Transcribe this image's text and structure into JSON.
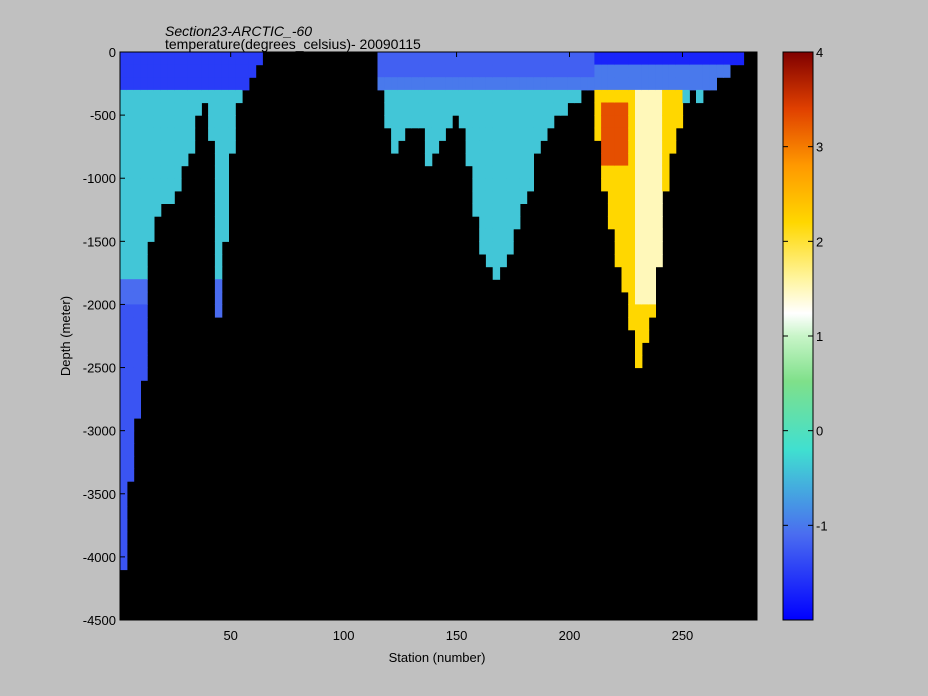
{
  "chart_data": {
    "type": "heatmap",
    "title": "Section23-ARCTIC_-60",
    "subtitle": "temperature(degrees_celsius)- 20090115",
    "xlabel": "Station (number)",
    "ylabel": "Depth (meter)",
    "xlim": [
      1,
      283
    ],
    "ylim": [
      -4500,
      0
    ],
    "x_ticks": [
      50,
      100,
      150,
      200,
      250
    ],
    "y_ticks": [
      0,
      -500,
      -1000,
      -1500,
      -2000,
      -2500,
      -3000,
      -3500,
      -4000,
      -4500
    ],
    "colorbar": {
      "range": [
        -2,
        4
      ],
      "ticks": [
        -1,
        0,
        1,
        2,
        3,
        4
      ],
      "colormap": "jet"
    },
    "missing_color": "#000000",
    "grid": false,
    "bottom_depth_profile": {
      "stations": [
        1,
        3,
        5,
        8,
        12,
        14,
        16,
        20,
        25,
        30,
        32,
        36,
        40,
        42,
        44,
        46,
        48,
        52,
        58,
        62,
        66,
        70,
        100,
        114,
        118,
        122,
        126,
        130,
        134,
        138,
        142,
        146,
        150,
        154,
        158,
        162,
        165,
        170,
        175,
        178,
        182,
        186,
        190,
        195,
        200,
        205,
        210,
        214,
        218,
        222,
        226,
        230,
        234,
        238,
        242,
        246,
        250,
        254,
        258,
        262,
        266,
        270,
        274,
        278,
        283
      ],
      "depths": [
        -4500,
        -4000,
        -3500,
        -3000,
        -2500,
        -1500,
        -1400,
        -1200,
        -1200,
        -900,
        -800,
        -500,
        -400,
        -800,
        -2000,
        -2500,
        -1200,
        -500,
        -200,
        -100,
        0,
        0,
        0,
        -50,
        -400,
        -800,
        -700,
        -600,
        -600,
        -900,
        -700,
        -600,
        -500,
        -700,
        -1200,
        -1700,
        -1750,
        -1750,
        -1500,
        -1300,
        -1100,
        -800,
        -700,
        -500,
        -400,
        -350,
        -300,
        -900,
        -1400,
        -1700,
        -2000,
        -2500,
        -2300,
        -2000,
        -1200,
        -700,
        -500,
        -300,
        -400,
        -300,
        -200,
        -200,
        -100,
        -50,
        0
      ]
    },
    "temperature_features": [
      {
        "stations": [
          1,
          66
        ],
        "depth_range": [
          0,
          -250
        ],
        "value": -1.5
      },
      {
        "stations": [
          1,
          15
        ],
        "depth_range": [
          -2000,
          -4500
        ],
        "value": -1.3
      },
      {
        "stations": [
          112,
          210
        ],
        "depth_range": [
          0,
          -150
        ],
        "value": -1.2
      },
      {
        "stations": [
          210,
          250
        ],
        "depth_range": [
          -300,
          -2500
        ],
        "value": 2.2
      },
      {
        "stations": [
          215,
          225
        ],
        "depth_range": [
          -400,
          -900
        ],
        "value": 3.3
      },
      {
        "stations": [
          230,
          240
        ],
        "depth_range": [
          -300,
          -2000
        ],
        "value": 1.5
      }
    ]
  }
}
